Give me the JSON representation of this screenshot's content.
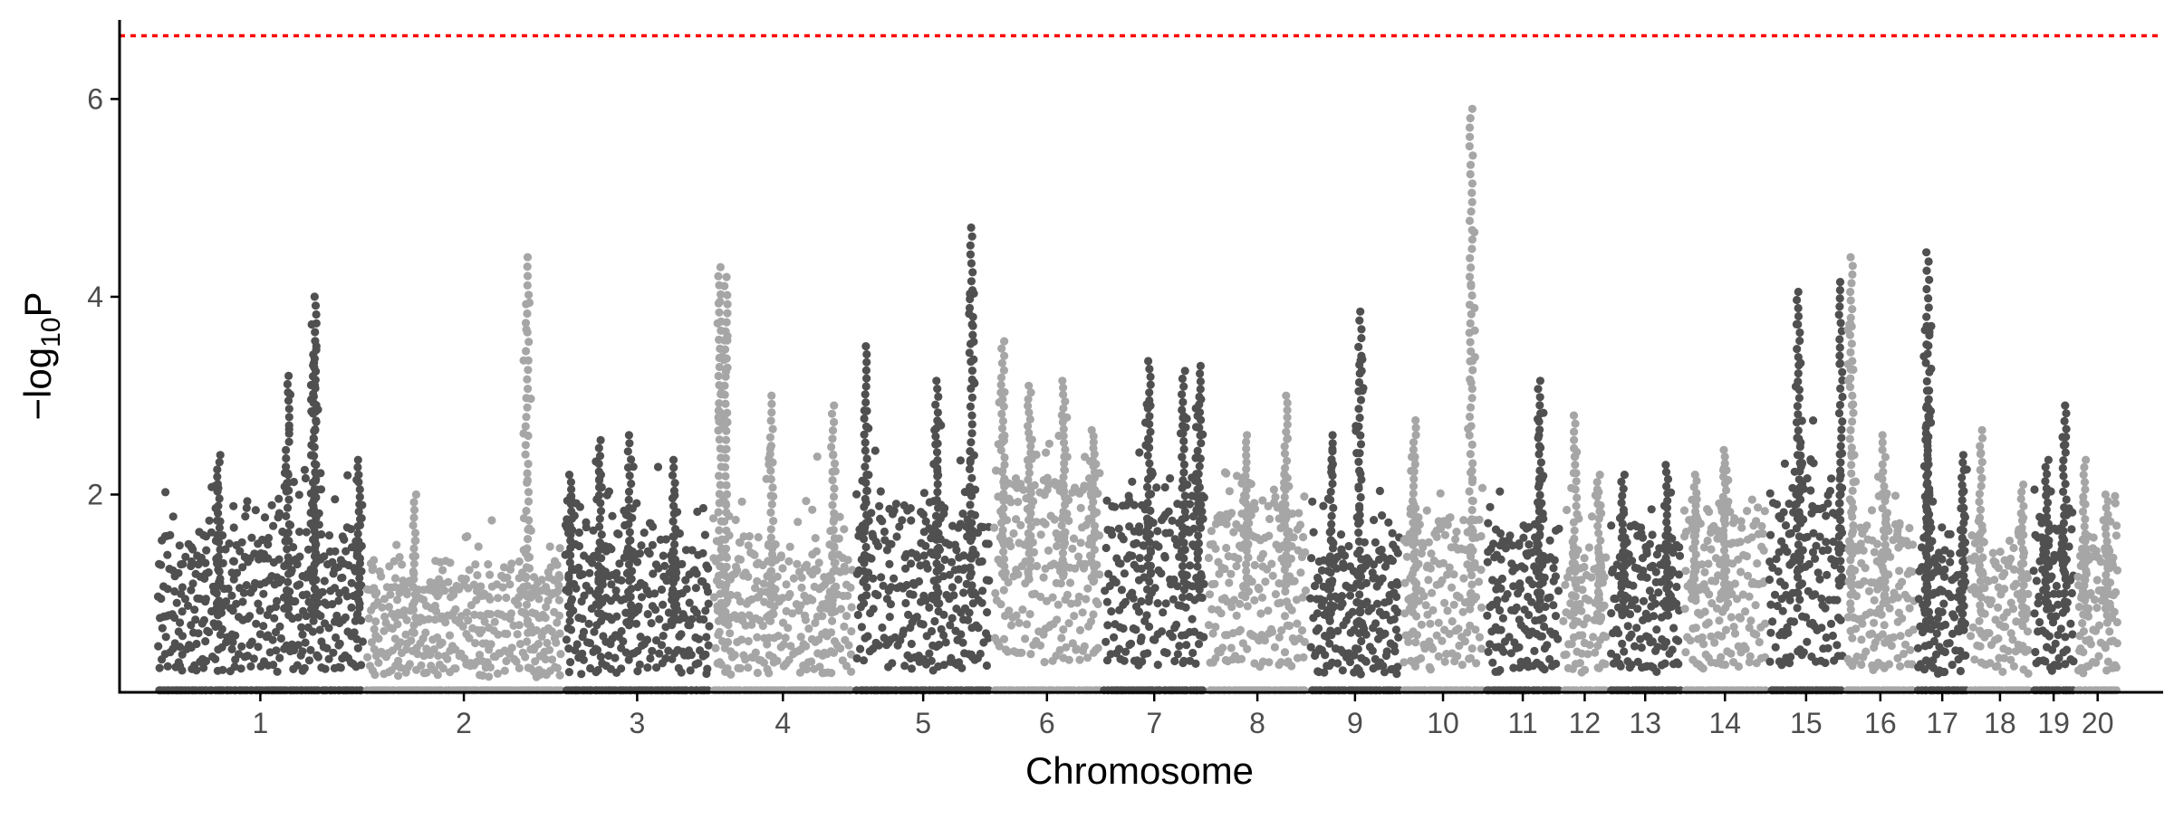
{
  "chart_data": {
    "type": "scatter",
    "subtype": "manhattan",
    "xlabel": "Chromosome",
    "ylabel_main": "−log",
    "ylabel_sub": "10",
    "ylabel_tail": "P",
    "ylim": [
      0,
      6.8
    ],
    "yticks": [
      2,
      4,
      6
    ],
    "grid": false,
    "legend": "none",
    "colors": {
      "dark": "#505050",
      "light": "#a6a6a6",
      "threshold": "#ff0000"
    },
    "threshold": {
      "value": 6.64,
      "style": "dotted"
    },
    "chromosomes": [
      {
        "label": "1",
        "length": 3.8,
        "max": 4.0,
        "base": 1.3,
        "spread": 2.3,
        "color": "dark",
        "peaks": [
          {
            "pos": 0.3,
            "h": 2.4
          },
          {
            "pos": 0.63,
            "h": 3.2
          },
          {
            "pos": 0.76,
            "h": 3.5
          },
          {
            "pos": 0.76,
            "h": 4.0
          },
          {
            "pos": 0.97,
            "h": 2.35
          }
        ]
      },
      {
        "label": "2",
        "length": 3.6,
        "max": 4.4,
        "base": 1.0,
        "spread": 1.6,
        "color": "light",
        "peaks": [
          {
            "pos": 0.82,
            "h": 4.4
          },
          {
            "pos": 0.25,
            "h": 2.0
          }
        ]
      },
      {
        "label": "3",
        "length": 2.7,
        "max": 2.6,
        "base": 1.2,
        "spread": 2.2,
        "color": "dark",
        "peaks": [
          {
            "pos": 0.05,
            "h": 2.2
          },
          {
            "pos": 0.25,
            "h": 2.55
          },
          {
            "pos": 0.45,
            "h": 2.6
          },
          {
            "pos": 0.75,
            "h": 2.35
          }
        ]
      },
      {
        "label": "4",
        "length": 2.6,
        "max": 4.3,
        "base": 1.2,
        "spread": 2.2,
        "color": "light",
        "peaks": [
          {
            "pos": 0.06,
            "h": 4.3
          },
          {
            "pos": 0.1,
            "h": 4.2
          },
          {
            "pos": 0.42,
            "h": 3.0
          },
          {
            "pos": 0.85,
            "h": 2.9
          }
        ]
      },
      {
        "label": "5",
        "length": 2.5,
        "max": 4.7,
        "base": 1.5,
        "spread": 2.3,
        "color": "dark",
        "peaks": [
          {
            "pos": 0.08,
            "h": 3.5
          },
          {
            "pos": 0.6,
            "h": 3.15
          },
          {
            "pos": 0.85,
            "h": 4.7
          }
        ]
      },
      {
        "label": "6",
        "length": 2.0,
        "max": 3.55,
        "base": 2.0,
        "spread": 2.5,
        "color": "light",
        "peaks": [
          {
            "pos": 0.1,
            "h": 3.55
          },
          {
            "pos": 0.34,
            "h": 3.1
          },
          {
            "pos": 0.65,
            "h": 3.15
          },
          {
            "pos": 0.92,
            "h": 2.65
          }
        ]
      },
      {
        "label": "7",
        "length": 1.9,
        "max": 3.35,
        "base": 1.6,
        "spread": 2.5,
        "color": "dark",
        "peaks": [
          {
            "pos": 0.45,
            "h": 3.35
          },
          {
            "pos": 0.78,
            "h": 3.25
          },
          {
            "pos": 0.93,
            "h": 3.3
          }
        ]
      },
      {
        "label": "8",
        "length": 1.85,
        "max": 3.0,
        "base": 1.7,
        "spread": 2.3,
        "color": "light",
        "peaks": [
          {
            "pos": 0.78,
            "h": 3.0
          },
          {
            "pos": 0.4,
            "h": 2.6
          }
        ]
      },
      {
        "label": "9",
        "length": 1.7,
        "max": 3.85,
        "base": 1.2,
        "spread": 2.1,
        "color": "dark",
        "peaks": [
          {
            "pos": 0.55,
            "h": 3.85
          },
          {
            "pos": 0.25,
            "h": 2.6
          }
        ]
      },
      {
        "label": "10",
        "length": 1.5,
        "max": 5.9,
        "base": 1.5,
        "spread": 2.2,
        "color": "light",
        "peaks": [
          {
            "pos": 0.84,
            "h": 5.9
          },
          {
            "pos": 0.15,
            "h": 2.75
          }
        ]
      },
      {
        "label": "11",
        "length": 1.4,
        "max": 3.15,
        "base": 1.4,
        "spread": 2.1,
        "color": "dark",
        "peaks": [
          {
            "pos": 0.72,
            "h": 3.15
          }
        ]
      },
      {
        "label": "12",
        "length": 0.85,
        "max": 2.8,
        "base": 1.2,
        "spread": 1.9,
        "color": "light",
        "peaks": [
          {
            "pos": 0.3,
            "h": 2.8
          },
          {
            "pos": 0.8,
            "h": 2.2
          }
        ]
      },
      {
        "label": "13",
        "length": 1.35,
        "max": 2.3,
        "base": 1.3,
        "spread": 2.0,
        "color": "dark",
        "peaks": [
          {
            "pos": 0.2,
            "h": 2.2
          },
          {
            "pos": 0.8,
            "h": 2.3
          }
        ]
      },
      {
        "label": "14",
        "length": 1.55,
        "max": 2.45,
        "base": 1.6,
        "spread": 2.2,
        "color": "light",
        "peaks": [
          {
            "pos": 0.5,
            "h": 2.45
          },
          {
            "pos": 0.15,
            "h": 2.2
          }
        ]
      },
      {
        "label": "15",
        "length": 1.4,
        "max": 4.15,
        "base": 1.8,
        "spread": 2.6,
        "color": "dark",
        "peaks": [
          {
            "pos": 0.4,
            "h": 4.05
          },
          {
            "pos": 0.95,
            "h": 4.15
          }
        ]
      },
      {
        "label": "16",
        "length": 1.3,
        "max": 4.4,
        "base": 1.5,
        "spread": 2.0,
        "color": "light",
        "peaks": [
          {
            "pos": 0.1,
            "h": 4.4
          },
          {
            "pos": 0.55,
            "h": 2.6
          }
        ]
      },
      {
        "label": "17",
        "length": 0.95,
        "max": 4.45,
        "base": 1.2,
        "spread": 1.9,
        "color": "dark",
        "peaks": [
          {
            "pos": 0.22,
            "h": 4.45
          },
          {
            "pos": 0.22,
            "h": 3.05
          },
          {
            "pos": 0.9,
            "h": 2.4
          }
        ]
      },
      {
        "label": "18",
        "length": 1.15,
        "max": 2.65,
        "base": 1.2,
        "spread": 1.9,
        "color": "light",
        "peaks": [
          {
            "pos": 0.2,
            "h": 2.65
          },
          {
            "pos": 0.85,
            "h": 2.1
          }
        ]
      },
      {
        "label": "19",
        "length": 0.8,
        "max": 2.9,
        "base": 1.4,
        "spread": 2.0,
        "color": "dark",
        "peaks": [
          {
            "pos": 0.75,
            "h": 2.9
          },
          {
            "pos": 0.35,
            "h": 2.35
          }
        ]
      },
      {
        "label": "20",
        "length": 0.8,
        "max": 2.35,
        "base": 1.3,
        "spread": 1.9,
        "color": "light",
        "peaks": [
          {
            "pos": 0.2,
            "h": 2.35
          },
          {
            "pos": 0.7,
            "h": 2.0
          }
        ]
      }
    ]
  }
}
